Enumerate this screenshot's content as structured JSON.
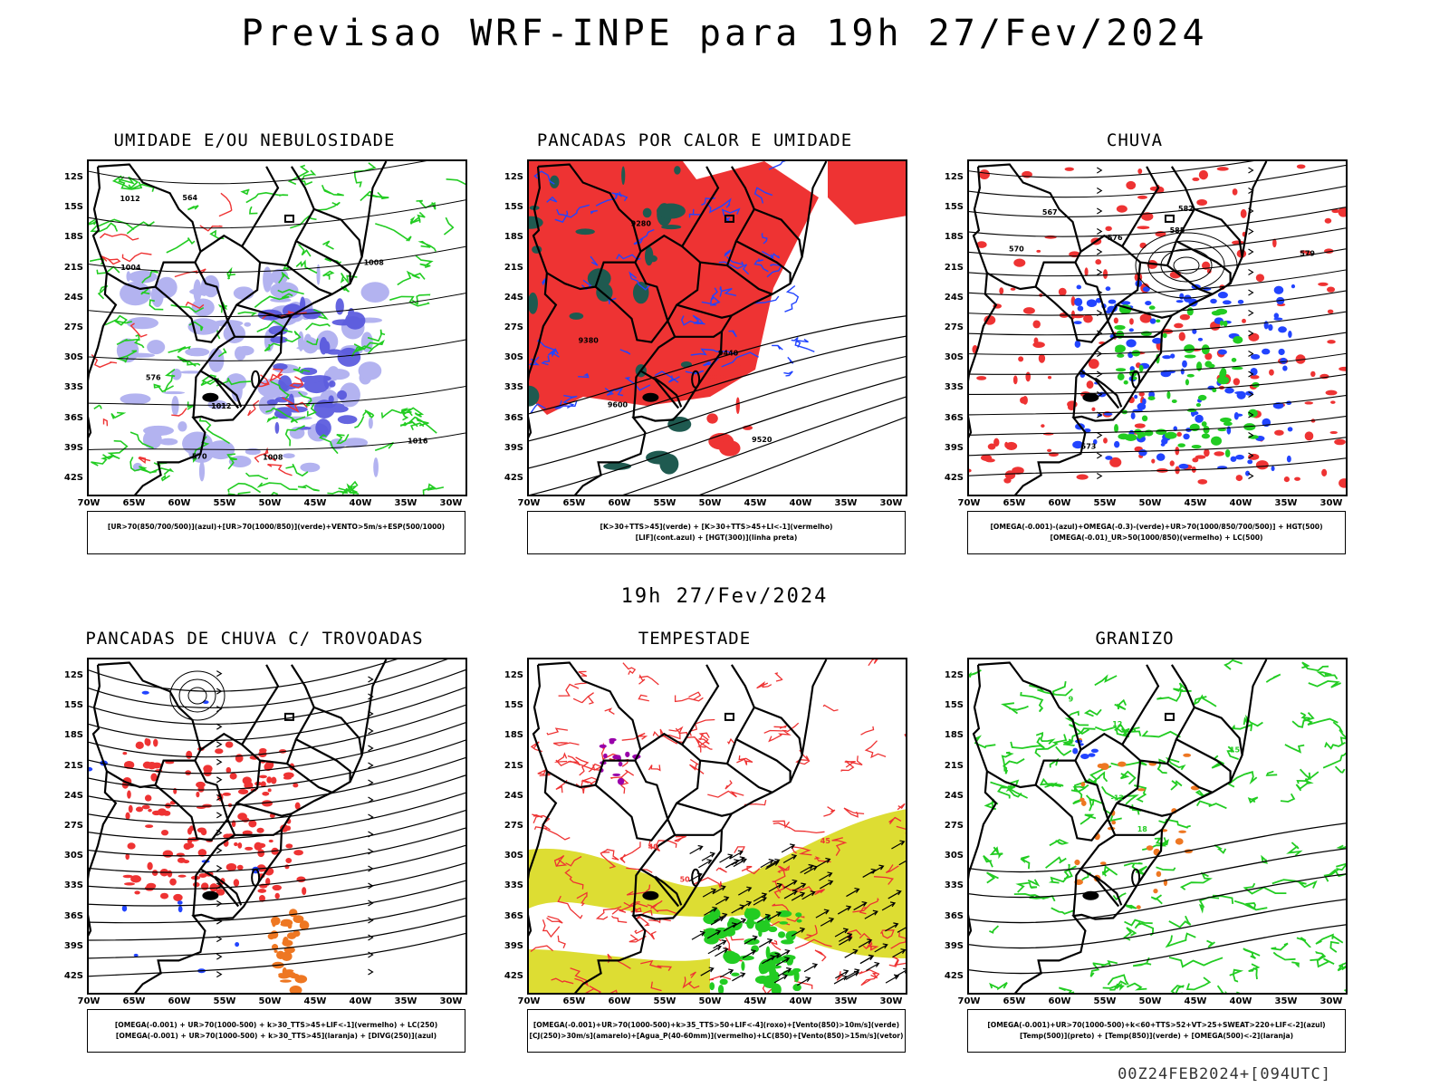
{
  "title": "Previsao WRF-INPE  para 19h 27/Fev/2024",
  "mid_stamp": "19h 27/Fev/2024",
  "run_stamp": "00Z24FEB2024+[094UTC]",
  "axes": {
    "lat": [
      "12S",
      "15S",
      "18S",
      "21S",
      "24S",
      "27S",
      "30S",
      "33S",
      "36S",
      "39S",
      "42S"
    ],
    "lon": [
      "70W",
      "65W",
      "60W",
      "55W",
      "50W",
      "45W",
      "40W",
      "35W",
      "30W"
    ]
  },
  "panels": [
    {
      "title": "UMIDADE E/OU NEBULOSIDADE",
      "legend": [
        "[UR>70(850/700/500)](azul)+[UR>70(1000/850)](verde)+VENTO>5m/s+ESP(500/1000)"
      ],
      "contour_labels": [
        "1008",
        "1008",
        "1012",
        "1012",
        "1004",
        "1016",
        "570",
        "576",
        "564"
      ]
    },
    {
      "title": "PANCADAS POR CALOR E UMIDADE",
      "legend": [
        "[K>30+TTS>45](verde) + [K>30+TTS>45+LI<-1](vermelho)",
        "[LIF](cont.azul) + [HGT(300)](linha preta)"
      ],
      "contour_labels": [
        "9600",
        "9520",
        "9440",
        "9380",
        "9280"
      ]
    },
    {
      "title": "CHUVA",
      "legend": [
        "[OMEGA(-0.001)-(azul)+OMEGA(-0.3)-(verde)+UR>70(1000/850/700/500)] + HGT(500)",
        "[OMEGA(-0.01)_UR>50(1000/850)(vermelho) + LC(500)"
      ],
      "contour_labels": [
        "585",
        "582",
        "579",
        "576",
        "573",
        "570",
        "567"
      ]
    },
    {
      "title": "PANCADAS DE CHUVA C/ TROVOADAS",
      "legend": [
        "[OMEGA(-0.001) + UR>70(1000-500) + k>30_TTS>45+LIF<-1](vermelho) + LC(250)",
        "[OMEGA(-0.001) + UR>70(1000-500) + k>30_TTS>45](laranja) + [DIVG(250)](azul)"
      ],
      "contour_labels": []
    },
    {
      "title": "TEMPESTADE",
      "legend": [
        "[OMEGA(-0.001)+UR>70(1000-500)+k>35_TTS>50+LIF<-4](roxo)+[Vento(850)>10m/s](verde)",
        "[CJ(250)>30m/s](amarelo)+[Agua_P(40-60mm)](vermelho)+LC(850)+[Vento(850)>15m/s](vetor)"
      ],
      "contour_labels": [
        "50",
        "40",
        "45"
      ]
    },
    {
      "title": "GRANIZO",
      "legend": [
        "[OMEGA(-0.001)+UR>70(1000-500)+k<60+TTS>52+VT>25+SWEAT>220+LIF<-2](azul)",
        "[Temp(500)](preto) + [Temp(850)](verde) + [OMEGA(500)<-2](laranja)"
      ],
      "contour_labels": [
        "15",
        "18",
        "12",
        "9",
        "-12"
      ]
    }
  ],
  "colors": {
    "contour_black": "#000000",
    "green": "#22cc22",
    "red": "#ee3333",
    "blue": "#2244ff",
    "lavender": "#a6a6ee",
    "violet": "#5555dd",
    "dark_teal": "#1f5a50",
    "yellow": "#dddd33",
    "orange": "#ee7722",
    "purple": "#9900aa"
  }
}
